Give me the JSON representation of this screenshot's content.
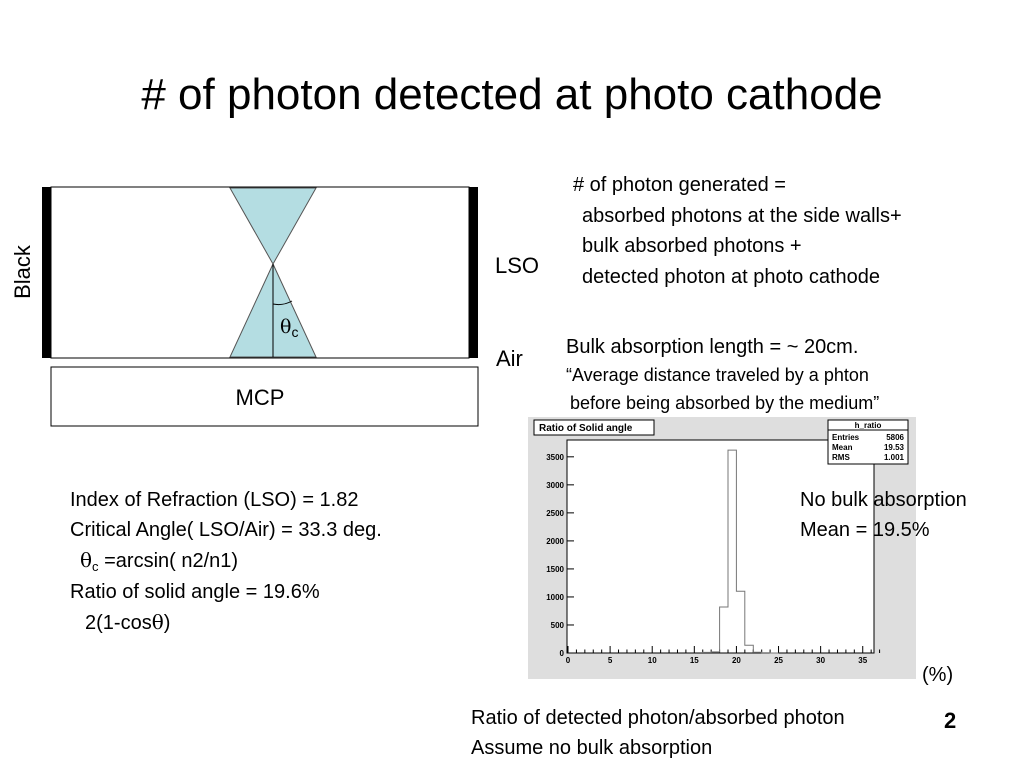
{
  "slide": {
    "title": "# of photon detected at photo cathode",
    "page_number": "2"
  },
  "diagram": {
    "black_label": "Black",
    "lso_label": "LSO",
    "air_label": "Air",
    "mcp_label": "MCP",
    "theta_symbol": "θ",
    "theta_subscript": "c"
  },
  "generated": {
    "line1": "# of photon generated =",
    "line2": "absorbed photons at the side walls+",
    "line3": "bulk absorbed photons +",
    "line4": "detected photon at photo cathode"
  },
  "bulk": {
    "line1": "Bulk absorption length = ~ 20cm.",
    "line2": "“Average distance traveled by a phton",
    "line3": "before being absorbed by the medium”"
  },
  "physics": {
    "line1": "Index of Refraction (LSO) = 1.82",
    "line2": "Critical Angle( LSO/Air) = 33.3 deg.",
    "line3_sym": "θ",
    "line3_sub": "c",
    "line3_rest": " =arcsin( n2/n1)",
    "line4": "Ratio of solid angle = 19.6%",
    "line5_pre": "2(1-cos",
    "line5_sym": "θ",
    "line5_post": ")"
  },
  "result": {
    "line1": "No bulk absorption",
    "line2": "Mean = 19.5%"
  },
  "unit_label": "(%)",
  "caption": {
    "line1": "Ratio of detected photon/absorbed photon",
    "line2": "Assume no bulk absorption"
  },
  "chart_data": {
    "type": "bar",
    "title": "Ratio of Solid angle",
    "stats": {
      "name": "h_ratio",
      "rows": [
        {
          "label": "Entries",
          "value": "5806"
        },
        {
          "label": "Mean",
          "value": "19.53"
        },
        {
          "label": "RMS",
          "value": "1.001"
        }
      ]
    },
    "x": [
      16,
      17,
      18,
      19,
      20,
      21,
      22,
      23,
      24
    ],
    "values": [
      10,
      20,
      820,
      3620,
      1100,
      140,
      15,
      5,
      0
    ],
    "xlim": [
      0,
      38
    ],
    "ylim": [
      0,
      3800
    ],
    "xticks": [
      0,
      5,
      10,
      15,
      20,
      25,
      30,
      35
    ],
    "yticks": [
      0,
      500,
      1000,
      1500,
      2000,
      2500,
      3000,
      3500
    ],
    "grid": false
  }
}
